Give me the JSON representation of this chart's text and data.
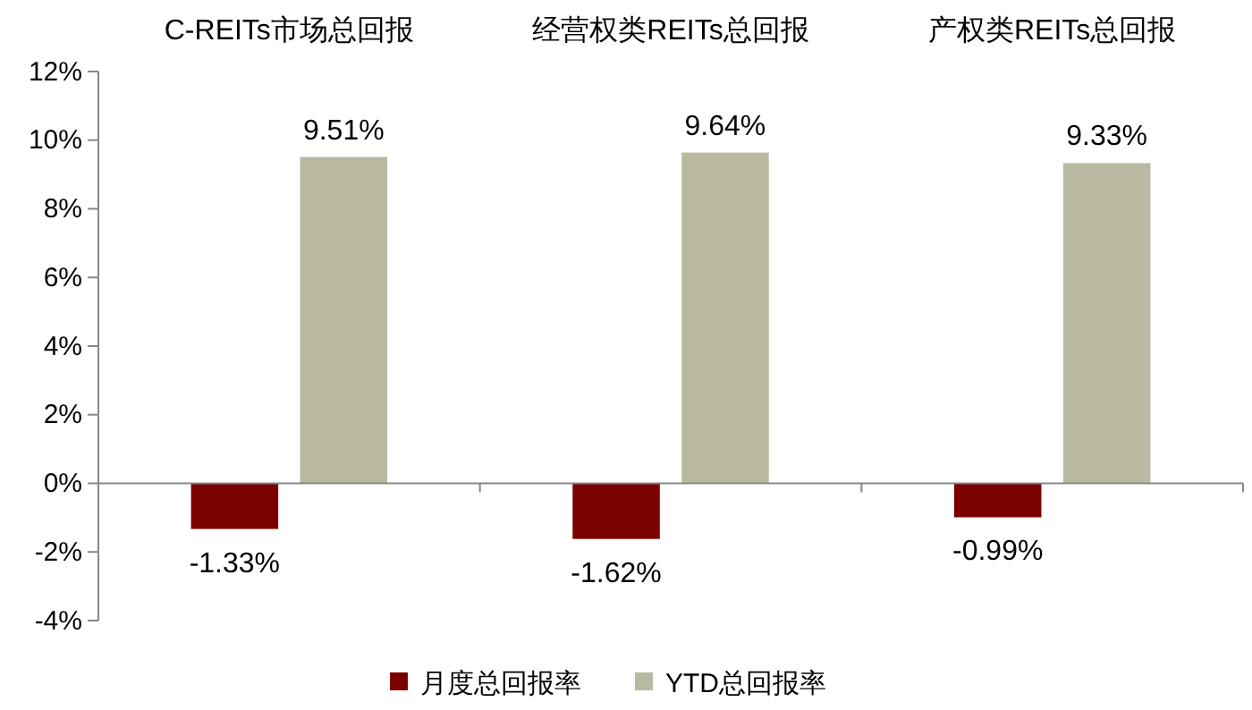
{
  "chart_data": {
    "type": "bar",
    "categories": [
      "C-REITs市场总回报",
      "经营权类REITs总回报",
      "产权类REITs总回报"
    ],
    "series": [
      {
        "name": "月度总回报率",
        "color": "#7b0000",
        "values": [
          -1.33,
          -1.62,
          -0.99
        ],
        "value_labels": [
          "-1.33%",
          "-1.62%",
          "-0.99%"
        ]
      },
      {
        "name": "YTD总回报率",
        "color": "#b9b9a1",
        "values": [
          9.51,
          9.64,
          9.33
        ],
        "value_labels": [
          "9.51%",
          "9.64%",
          "9.33%"
        ]
      }
    ],
    "ylim": [
      -4,
      12
    ],
    "yticks": [
      {
        "value": -4,
        "label": "-4%"
      },
      {
        "value": -2,
        "label": "-2%"
      },
      {
        "value": 0,
        "label": "0%"
      },
      {
        "value": 2,
        "label": "2%"
      },
      {
        "value": 4,
        "label": "4%"
      },
      {
        "value": 6,
        "label": "6%"
      },
      {
        "value": 8,
        "label": "8%"
      },
      {
        "value": 10,
        "label": "10%"
      },
      {
        "value": 12,
        "label": "12%"
      }
    ],
    "legend": "bottom"
  }
}
